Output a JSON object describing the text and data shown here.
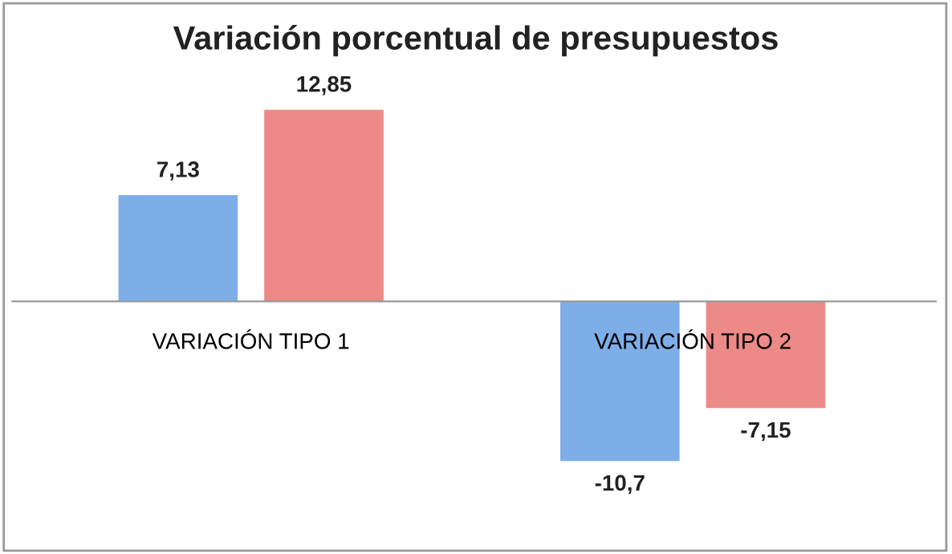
{
  "chart_data": {
    "type": "bar",
    "title": "Variación porcentual de presupuestos",
    "categories": [
      "VARIACIÓN TIPO 1",
      "VARIACIÓN TIPO 2"
    ],
    "series": [
      {
        "color": "#7eaee8",
        "values": [
          7.13,
          -10.7
        ],
        "value_labels": [
          "7,13",
          "-10,7"
        ]
      },
      {
        "color": "#ec8a88",
        "values": [
          12.85,
          -7.15
        ],
        "value_labels": [
          "12,85",
          "-7,15"
        ]
      }
    ],
    "grid": false,
    "legend": false
  }
}
